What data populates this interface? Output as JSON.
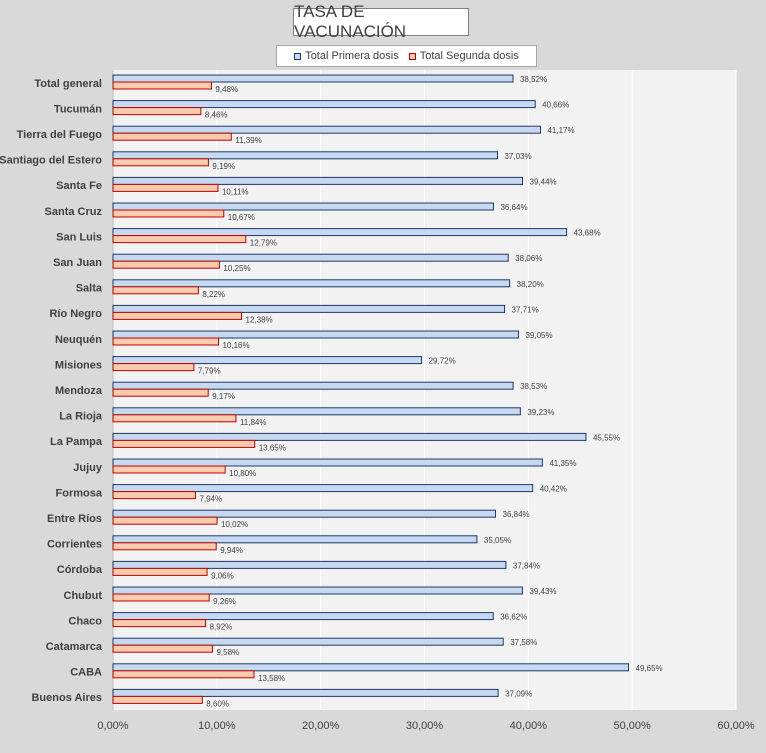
{
  "colors": {
    "primera_fill": "#c6d9f1",
    "primera_stroke": "#1f3864",
    "segunda_fill": "#f8cbad",
    "segunda_stroke": "#c00000",
    "plot_bg": "#f2f2f2",
    "grid": "#ffffff",
    "outer_bg": "#d9d9d9"
  },
  "chart_data": {
    "type": "bar",
    "orientation": "horizontal",
    "title": "TASA DE VACUNACIÓN",
    "categories": [
      "Total general",
      "Tucumán",
      "Tierra del Fuego",
      "Santiago del Estero",
      "Santa Fe",
      "Santa Cruz",
      "San Luis",
      "San Juan",
      "Salta",
      "Río Negro",
      "Neuquén",
      "Misiones",
      "Mendoza",
      "La Rioja",
      "La Pampa",
      "Jujuy",
      "Formosa",
      "Entre Ríos",
      "Corrientes",
      "Córdoba",
      "Chubut",
      "Chaco",
      "Catamarca",
      "CABA",
      "Buenos Aires"
    ],
    "series": [
      {
        "name": "Total Primera dosis",
        "values": [
          38.52,
          40.66,
          41.17,
          37.03,
          39.44,
          36.64,
          43.68,
          38.06,
          38.2,
          37.71,
          39.05,
          29.72,
          38.53,
          39.23,
          45.55,
          41.35,
          40.42,
          36.84,
          35.05,
          37.84,
          39.43,
          36.62,
          37.58,
          49.65,
          37.09
        ],
        "labels": [
          "38,52%",
          "40,66%",
          "41,17%",
          "37,03%",
          "39,44%",
          "36,64%",
          "43,68%",
          "38,06%",
          "38,20%",
          "37,71%",
          "39,05%",
          "29,72%",
          "38,53%",
          "39,23%",
          "45,55%",
          "41,35%",
          "40,42%",
          "36,84%",
          "35,05%",
          "37,84%",
          "39,43%",
          "36,62%",
          "37,58%",
          "49,65%",
          "37,09%"
        ]
      },
      {
        "name": "Total Segunda dosis",
        "values": [
          9.48,
          8.46,
          11.39,
          9.19,
          10.11,
          10.67,
          12.79,
          10.25,
          8.22,
          12.38,
          10.16,
          7.79,
          9.17,
          11.84,
          13.65,
          10.8,
          7.94,
          10.02,
          9.94,
          9.06,
          9.26,
          8.92,
          9.58,
          13.58,
          8.6
        ],
        "labels": [
          "9,48%",
          "8,46%",
          "11,39%",
          "9,19%",
          "10,11%",
          "10,67%",
          "12,79%",
          "10,25%",
          "8,22%",
          "12,38%",
          "10,16%",
          "7,79%",
          "9,17%",
          "11,84%",
          "13,65%",
          "10,80%",
          "7,94%",
          "10,02%",
          "9,94%",
          "9,06%",
          "9,26%",
          "8,92%",
          "9,58%",
          "13,58%",
          "8,60%"
        ]
      }
    ],
    "xlim": [
      0,
      60
    ],
    "xticks": [
      0,
      10,
      20,
      30,
      40,
      50,
      60
    ],
    "xtick_labels": [
      "0,00%",
      "10,00%",
      "20,00%",
      "30,00%",
      "40,00%",
      "50,00%",
      "60,00%"
    ],
    "grid": true,
    "legend_position": "top"
  }
}
